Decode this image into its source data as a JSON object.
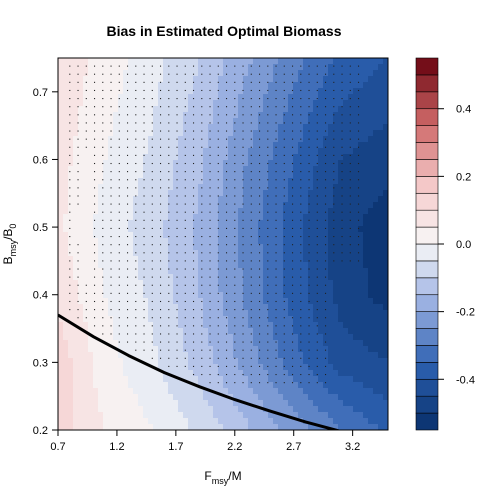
{
  "chart_data": {
    "type": "heatmap",
    "title": "Bias in Estimated Optimal Biomass",
    "xlabel": {
      "main": "F",
      "sub": "msy",
      "rest": "/M"
    },
    "ylabel": {
      "main": "B",
      "sub": "msy",
      "rest": "/B",
      "sub2": "0"
    },
    "x_ticks": [
      "0.7",
      "1.2",
      "1.7",
      "2.2",
      "2.7",
      "3.2"
    ],
    "x_tick_values": [
      0.7,
      1.2,
      1.7,
      2.2,
      2.7,
      3.2
    ],
    "y_ticks": [
      "0.2",
      "0.3",
      "0.4",
      "0.5",
      "0.6",
      "0.7"
    ],
    "y_tick_values": [
      0.2,
      0.3,
      0.4,
      0.5,
      0.6,
      0.7
    ],
    "xlim": [
      0.7,
      3.5
    ],
    "ylim": [
      0.2,
      0.75
    ],
    "colorbar": {
      "ticks": [
        "-0.4",
        "-0.2",
        "0.0",
        "0.2",
        "0.4"
      ],
      "tick_values": [
        -0.4,
        -0.2,
        0.0,
        0.2,
        0.4
      ],
      "range": [
        -0.55,
        0.55
      ],
      "step": 0.05,
      "low_color": "#08306b",
      "mid_color": "#f7f7f7",
      "high_color": "#67000d"
    },
    "bias_grid": {
      "x": [
        0.7,
        1.1,
        1.5,
        1.9,
        2.3,
        2.7,
        3.1,
        3.5
      ],
      "y": [
        0.2,
        0.3,
        0.4,
        0.5,
        0.6,
        0.75
      ],
      "z": [
        [
          0.12,
          0.05,
          0.0,
          -0.06,
          -0.14,
          -0.22,
          -0.3,
          -0.36
        ],
        [
          0.13,
          0.02,
          -0.04,
          -0.12,
          -0.22,
          -0.33,
          -0.42,
          -0.45
        ],
        [
          0.09,
          0.0,
          -0.06,
          -0.15,
          -0.26,
          -0.37,
          -0.47,
          -0.52
        ],
        [
          0.06,
          -0.02,
          -0.08,
          -0.16,
          -0.27,
          -0.38,
          -0.48,
          -0.53
        ],
        [
          0.07,
          0.0,
          -0.06,
          -0.14,
          -0.25,
          -0.35,
          -0.45,
          -0.48
        ],
        [
          0.09,
          0.03,
          -0.03,
          -0.1,
          -0.19,
          -0.28,
          -0.36,
          -0.4
        ]
      ]
    },
    "curve": {
      "x": [
        0.7,
        1.0,
        1.3,
        1.6,
        1.9,
        2.2,
        2.5,
        2.8,
        3.1
      ],
      "y": [
        0.37,
        0.338,
        0.31,
        0.285,
        0.264,
        0.245,
        0.228,
        0.212,
        0.198
      ]
    },
    "stipple": {
      "x_range": [
        0.8,
        3.3
      ],
      "y_range": [
        0.27,
        0.74
      ],
      "step_x": 0.07,
      "step_y": 0.012
    }
  }
}
